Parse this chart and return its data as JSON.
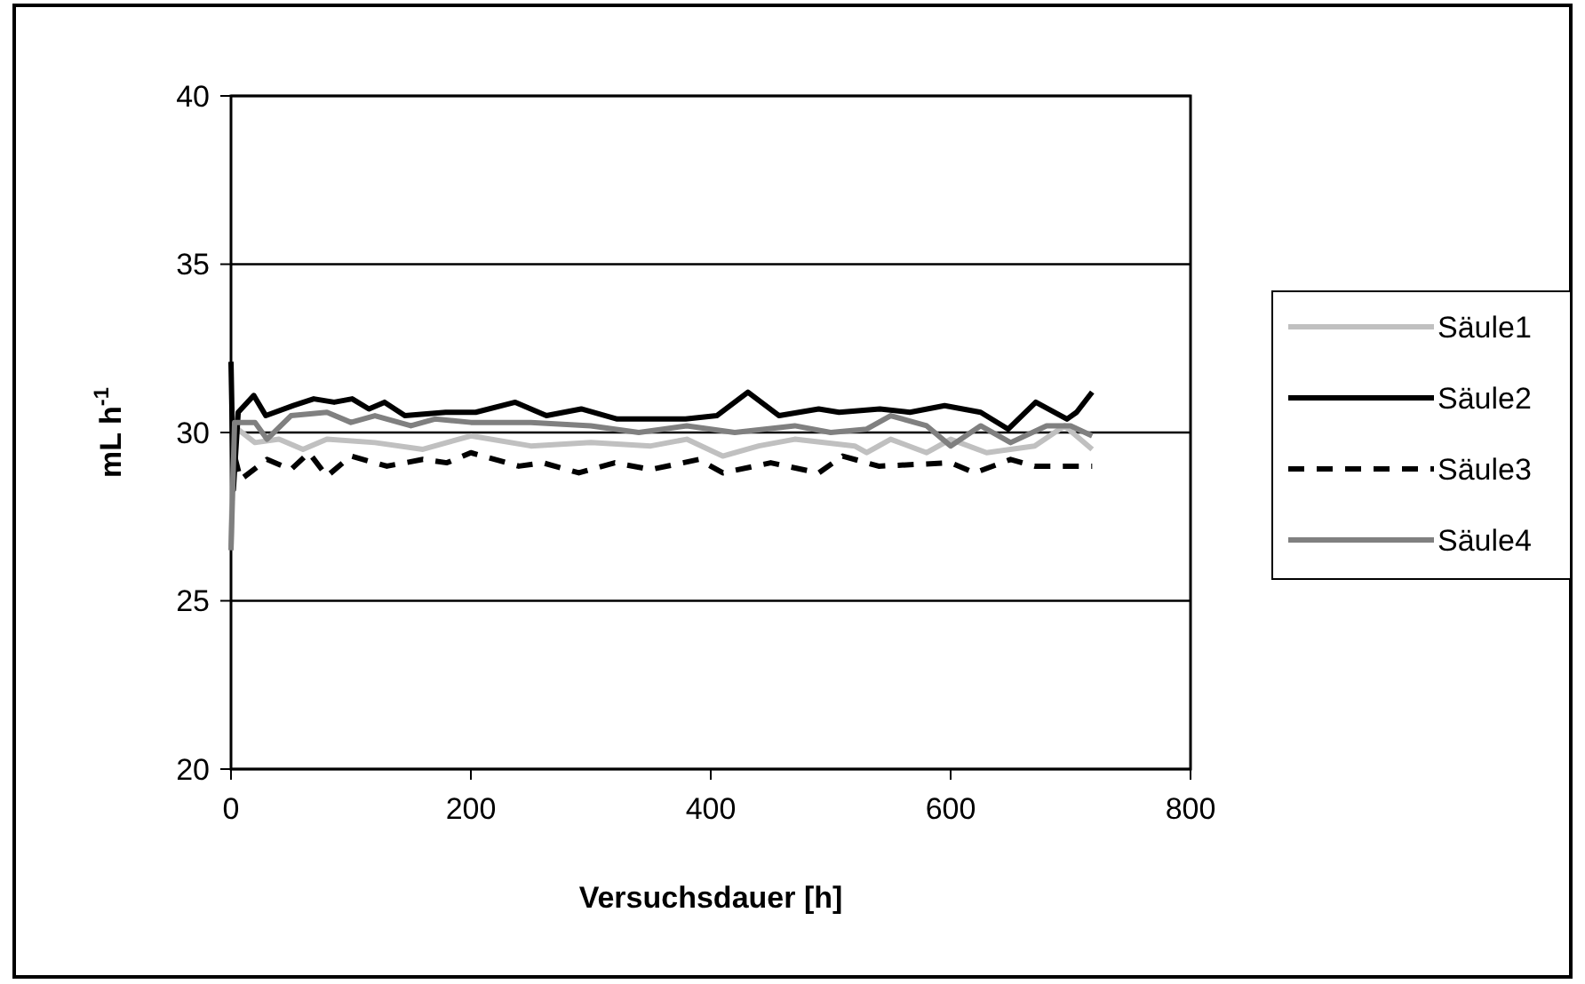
{
  "chart_data": {
    "type": "line",
    "xlabel": "Versuchsdauer [h]",
    "ylabel": "mL h$^{-1}$",
    "xlim": [
      0,
      800
    ],
    "xticks": [
      0,
      200,
      400,
      600,
      800
    ],
    "ylim": [
      20,
      40
    ],
    "yticks": [
      20,
      25,
      30,
      35,
      40
    ],
    "grid": "y",
    "legend": "right",
    "marker": "none",
    "series": [
      {
        "name": "Säule1",
        "color": "#c0c0c0",
        "line_style": "solid",
        "x": [
          0,
          2,
          20,
          40,
          60,
          80,
          120,
          160,
          200,
          250,
          300,
          350,
          380,
          410,
          440,
          470,
          520,
          530,
          550,
          580,
          600,
          630,
          670,
          695,
          718
        ],
        "values": [
          26.6,
          30.2,
          29.7,
          29.8,
          29.5,
          29.8,
          29.7,
          29.5,
          29.9,
          29.6,
          29.7,
          29.6,
          29.8,
          29.3,
          29.6,
          29.8,
          29.6,
          29.4,
          29.8,
          29.4,
          29.8,
          29.4,
          29.6,
          30.2,
          29.5
        ]
      },
      {
        "name": "Säule2",
        "color": "#000000",
        "line_style": "solid",
        "x": [
          0,
          2,
          6,
          19,
          29,
          52,
          69,
          86,
          101,
          115,
          128,
          145,
          179,
          204,
          237,
          263,
          292,
          322,
          379,
          405,
          431,
          457,
          490,
          507,
          541,
          566,
          595,
          625,
          648,
          671,
          697,
          705,
          718
        ],
        "values": [
          32.1,
          28.3,
          30.6,
          31.1,
          30.5,
          30.8,
          31.0,
          30.9,
          31.0,
          30.7,
          30.9,
          30.5,
          30.6,
          30.6,
          30.9,
          30.5,
          30.7,
          30.4,
          30.4,
          30.5,
          31.2,
          30.5,
          30.7,
          30.6,
          30.7,
          30.6,
          30.8,
          30.6,
          30.1,
          30.9,
          30.4,
          30.6,
          31.2
        ]
      },
      {
        "name": "Säule3",
        "color": "#000000",
        "line_style": "dashed",
        "x": [
          3,
          8,
          30,
          50,
          65,
          80,
          100,
          130,
          160,
          180,
          200,
          240,
          260,
          290,
          320,
          350,
          390,
          410,
          450,
          490,
          510,
          540,
          600,
          620,
          650,
          670,
          718
        ],
        "values": [
          29.3,
          28.6,
          29.2,
          28.9,
          29.4,
          28.7,
          29.3,
          29.0,
          29.2,
          29.1,
          29.4,
          29.0,
          29.1,
          28.8,
          29.1,
          28.9,
          29.2,
          28.8,
          29.1,
          28.8,
          29.3,
          29.0,
          29.1,
          28.8,
          29.2,
          29.0,
          29.0
        ]
      },
      {
        "name": "Säule4",
        "color": "#808080",
        "line_style": "solid",
        "x": [
          0,
          3,
          20,
          30,
          50,
          80,
          100,
          120,
          150,
          170,
          200,
          250,
          300,
          340,
          380,
          420,
          470,
          500,
          530,
          550,
          580,
          600,
          625,
          650,
          680,
          700,
          718
        ],
        "values": [
          26.5,
          30.3,
          30.3,
          29.8,
          30.5,
          30.6,
          30.3,
          30.5,
          30.2,
          30.4,
          30.3,
          30.3,
          30.2,
          30.0,
          30.2,
          30.0,
          30.2,
          30.0,
          30.1,
          30.5,
          30.2,
          29.6,
          30.2,
          29.7,
          30.2,
          30.2,
          29.9
        ]
      }
    ]
  }
}
